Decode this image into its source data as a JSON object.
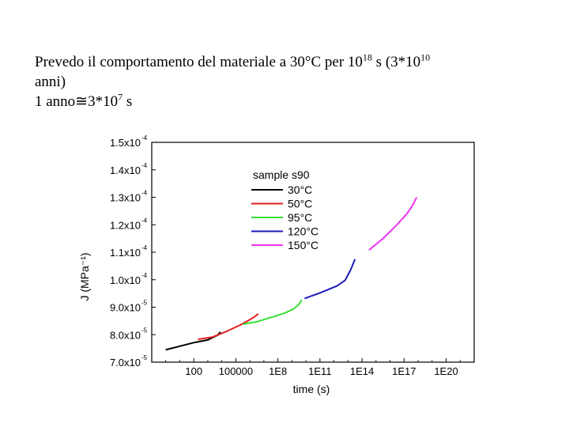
{
  "caption": {
    "line1_a": "Prevedo il comportamento del materiale a 30°C per 10",
    "line1_exp": "18",
    "line1_b": " s (3*10",
    "line1_exp2": "10",
    "line2": "anni)",
    "line3_a": "1 anno≅3*10",
    "line3_exp": "7",
    "line3_b": " s"
  },
  "chart_data": {
    "type": "line",
    "title": "",
    "xlabel": "time (s)",
    "ylabel": "J (MPa⁻¹)",
    "xscale": "log",
    "xlim_log10": [
      -1,
      22
    ],
    "ylim": [
      7e-05,
      0.00015
    ],
    "x_ticks": [
      {
        "log10": 2,
        "label": "100"
      },
      {
        "log10": 5,
        "label": "100000"
      },
      {
        "log10": 8,
        "label": "1E8"
      },
      {
        "log10": 11,
        "label": "1E11"
      },
      {
        "log10": 14,
        "label": "1E14"
      },
      {
        "log10": 17,
        "label": "1E17"
      },
      {
        "log10": 20,
        "label": "1E20"
      }
    ],
    "y_ticks": [
      {
        "value": 7e-05,
        "mant": "7.0x10",
        "exp": "-5"
      },
      {
        "value": 8e-05,
        "mant": "8.0x10",
        "exp": "-5"
      },
      {
        "value": 9e-05,
        "mant": "9.0x10",
        "exp": "-5"
      },
      {
        "value": 0.0001,
        "mant": "1.0x10",
        "exp": "-4"
      },
      {
        "value": 0.00011,
        "mant": "1.1x10",
        "exp": "-4"
      },
      {
        "value": 0.00012,
        "mant": "1.2x10",
        "exp": "-4"
      },
      {
        "value": 0.00013,
        "mant": "1.3x10",
        "exp": "-4"
      },
      {
        "value": 0.00014,
        "mant": "1.4x10",
        "exp": "-4"
      },
      {
        "value": 0.00015,
        "mant": "1.5x10",
        "exp": "-4"
      }
    ],
    "legend_title": "sample s90",
    "legend_position": "top-center",
    "series": [
      {
        "name": "30°C",
        "color": "#000000",
        "x_log10": [
          0,
          1,
          2,
          3,
          3.4,
          3.7,
          3.9
        ],
        "y": [
          7.45e-05,
          7.58e-05,
          7.71e-05,
          7.81e-05,
          7.91e-05,
          7.98e-05,
          8.1e-05
        ]
      },
      {
        "name": "50°C",
        "color": "#e11d1d",
        "x_log10": [
          2.3,
          3.3,
          4.3,
          5.3,
          5.9,
          6.3,
          6.6
        ],
        "y": [
          7.83e-05,
          7.91e-05,
          8.11e-05,
          8.35e-05,
          8.52e-05,
          8.64e-05,
          8.76e-05
        ]
      },
      {
        "name": "95°C",
        "color": "#33e033",
        "x_log10": [
          5.5,
          6.5,
          7.5,
          8.5,
          9.1,
          9.5,
          9.7
        ],
        "y": [
          8.38e-05,
          8.47e-05,
          8.63e-05,
          8.79e-05,
          8.93e-05,
          9.1e-05,
          9.27e-05
        ]
      },
      {
        "name": "120°C",
        "color": "#1a1ab8",
        "x_log10": [
          9.9,
          11,
          12.2,
          12.8,
          13.2,
          13.5
        ],
        "y": [
          9.32e-05,
          9.52e-05,
          9.77e-05,
          9.98e-05,
          0.0001037,
          0.0001075
        ]
      },
      {
        "name": "150°C",
        "color": "#ee33ee",
        "x_log10": [
          14.5,
          15.5,
          16.5,
          17.2,
          17.6,
          17.9
        ],
        "y": [
          0.0001108,
          0.000115,
          0.00012,
          0.000124,
          0.000127,
          0.00013
        ]
      }
    ]
  }
}
